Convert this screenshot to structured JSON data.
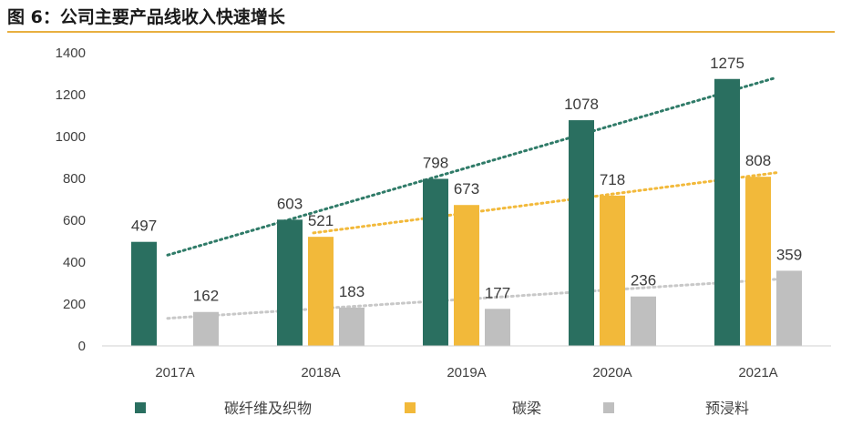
{
  "header": {
    "title": "图 6：公司主要产品线收入快速增长"
  },
  "chart_data": {
    "type": "bar",
    "title": "",
    "xlabel": "",
    "ylabel": "",
    "ylim": [
      0,
      1400
    ],
    "yticks": [
      0,
      200,
      400,
      600,
      800,
      1000,
      1200,
      1400
    ],
    "grid": false,
    "legend_position": "bottom",
    "categories": [
      "2017A",
      "2018A",
      "2019A",
      "2020A",
      "2021A"
    ],
    "series": [
      {
        "name": "碳纤维及织物",
        "color": "#2a6f60",
        "values": [
          497,
          603,
          798,
          1078,
          1275
        ]
      },
      {
        "name": "碳梁",
        "color": "#f2b93a",
        "values": [
          null,
          521,
          673,
          718,
          808
        ]
      },
      {
        "name": "预浸料",
        "color": "#bfbfbf",
        "values": [
          162,
          183,
          177,
          236,
          359
        ]
      }
    ],
    "trendlines": [
      {
        "series": "碳纤维及织物",
        "style": "dotted",
        "color": "#2f7b68"
      },
      {
        "series": "碳梁",
        "style": "dotted",
        "color": "#f2b93a"
      },
      {
        "series": "预浸料",
        "style": "dotted",
        "color": "#c8c8c8"
      }
    ]
  }
}
